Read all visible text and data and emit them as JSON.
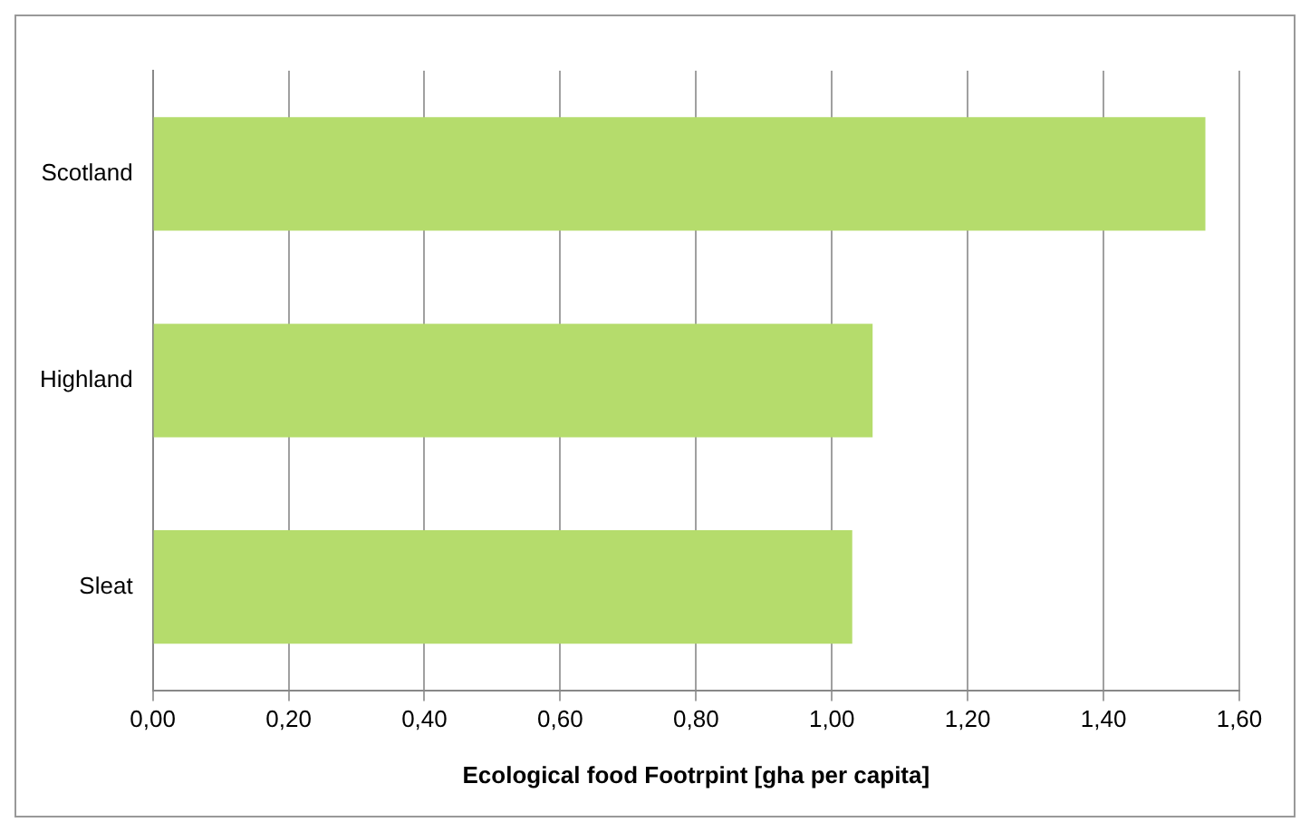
{
  "chart_data": {
    "type": "bar",
    "orientation": "horizontal",
    "xlabel": "Ecological food Footrpint [gha per capita]",
    "categories": [
      "Scotland",
      "Highland",
      "Sleat"
    ],
    "values": [
      1.55,
      1.06,
      1.03
    ],
    "color": "#b5dc6c",
    "xlim": [
      0,
      1.6
    ],
    "xticks": [
      {
        "value": 0,
        "label": "0,00"
      },
      {
        "value": 0.2,
        "label": "0,20"
      },
      {
        "value": 0.4,
        "label": "0,40"
      },
      {
        "value": 0.6,
        "label": "0,60"
      },
      {
        "value": 0.8,
        "label": "0,80"
      },
      {
        "value": 1,
        "label": "1,00"
      },
      {
        "value": 1.2,
        "label": "1,20"
      },
      {
        "value": 1.4,
        "label": "1,40"
      },
      {
        "value": 1.6,
        "label": "1,60"
      }
    ],
    "grid": "x",
    "legend": false
  }
}
